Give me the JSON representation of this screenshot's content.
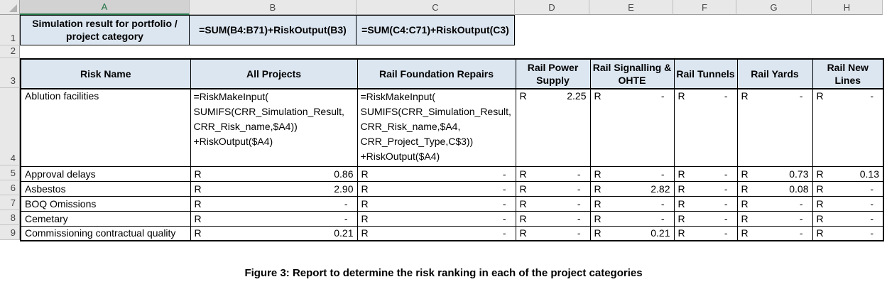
{
  "sheet": {
    "columns": [
      "A",
      "B",
      "C",
      "D",
      "E",
      "F",
      "G",
      "H"
    ],
    "row_numbers": [
      "1",
      "2",
      "3",
      "4",
      "5",
      "6",
      "7",
      "8",
      "9"
    ],
    "row1": {
      "a": "Simulation result for portfolio / project category",
      "b": "=SUM(B4:B71)+RiskOutput(B3)",
      "c": "=SUM(C4:C71)+RiskOutput(C3)"
    },
    "risk_table": {
      "headers": [
        "Risk Name",
        "All Projects",
        "Rail Foundation Repairs",
        "Rail Power Supply",
        "Rail Signalling & OHTE",
        "Rail Tunnels",
        "Rail Yards",
        "Rail New Lines"
      ],
      "currency": "R",
      "row4": {
        "name": "Ablution facilities",
        "formula_b": "=RiskMakeInput(\nSUMIFS(CRR_Simulation_Result,\nCRR_Risk_name,$A4))\n+RiskOutput($A4)",
        "formula_c": "=RiskMakeInput(\nSUMIFS(CRR_Simulation_Result,\nCRR_Risk_name,$A4,\nCRR_Project_Type,C$3))\n+RiskOutput($A4)",
        "values": [
          "2.25",
          "-",
          "-",
          "-",
          "-"
        ]
      },
      "rows": [
        {
          "name": "Approval delays",
          "values": [
            "0.86",
            "-",
            "-",
            "-",
            "-",
            "0.73",
            "0.13"
          ]
        },
        {
          "name": "Asbestos",
          "values": [
            "2.90",
            "-",
            "-",
            "2.82",
            "-",
            "0.08",
            "-"
          ]
        },
        {
          "name": "BOQ Omissions",
          "values": [
            "-",
            "-",
            "-",
            "-",
            "-",
            "-",
            "-"
          ]
        },
        {
          "name": "Cemetary",
          "values": [
            "-",
            "-",
            "-",
            "-",
            "-",
            "-",
            "-"
          ]
        },
        {
          "name": "Commissioning contractual quality",
          "values": [
            "0.21",
            "-",
            "-",
            "0.21",
            "-",
            "-",
            "-"
          ]
        }
      ]
    }
  },
  "caption": "Figure 3: Report to determine the risk ranking in each of the project categories",
  "colors": {
    "cell_fill_blue": "#dce6f1",
    "chrome_fill": "#e8e8e8",
    "selected_column_fill": "#d2d2d2",
    "selected_green": "#217346",
    "grid_border": "#000000"
  }
}
